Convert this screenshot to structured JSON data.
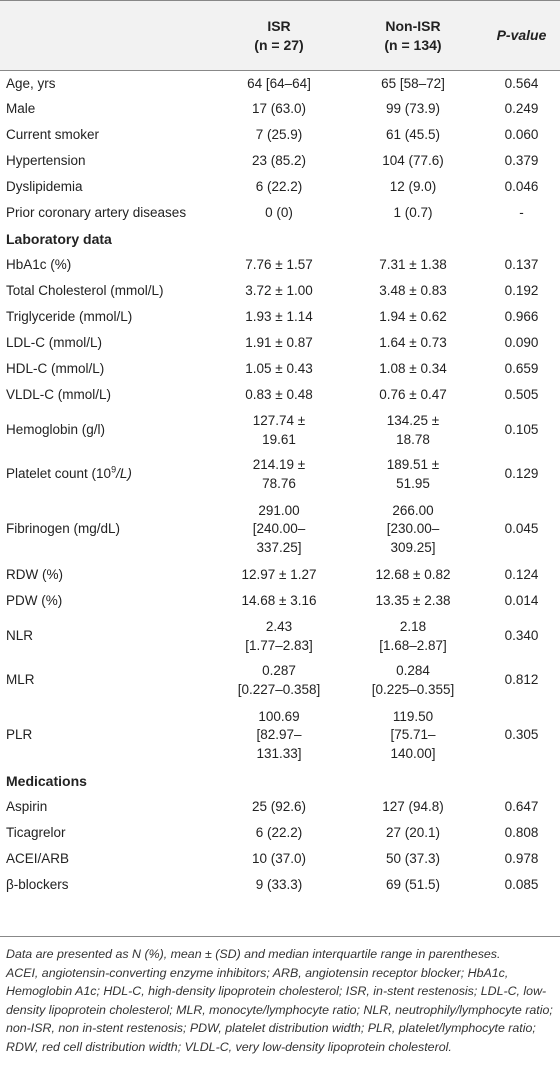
{
  "header": {
    "col_isr": "ISR",
    "col_isr_n": "(n = 27)",
    "col_nonisr": "Non-ISR",
    "col_nonisr_n": "(n = 134)",
    "col_pvalue": "P-value"
  },
  "rows": [
    {
      "label": "Age, yrs",
      "isr": "64 [64–64]",
      "non": "65 [58–72]",
      "p": "0.564"
    },
    {
      "label": "Male",
      "isr": "17 (63.0)",
      "non": "99 (73.9)",
      "p": "0.249"
    },
    {
      "label": "Current smoker",
      "isr": "7 (25.9)",
      "non": "61 (45.5)",
      "p": "0.060"
    },
    {
      "label": "Hypertension",
      "isr": "23 (85.2)",
      "non": "104 (77.6)",
      "p": "0.379"
    },
    {
      "label": "Dyslipidemia",
      "isr": "6 (22.2)",
      "non": "12 (9.0)",
      "p": "0.046"
    },
    {
      "label": "Prior coronary artery diseases",
      "isr": "0 (0)",
      "non": "1 (0.7)",
      "p": "-"
    }
  ],
  "section_lab": "Laboratory data",
  "lab_rows": [
    {
      "label": "HbA1c (%)",
      "isr": "7.76 ± 1.57",
      "non": "7.31 ± 1.38",
      "p": "0.137"
    },
    {
      "label": "Total Cholesterol (mmol/L)",
      "isr": "3.72 ± 1.00",
      "non": "3.48 ± 0.83",
      "p": "0.192"
    },
    {
      "label": "Triglyceride (mmol/L)",
      "isr": "1.93 ± 1.14",
      "non": "1.94 ± 0.62",
      "p": "0.966"
    },
    {
      "label": "LDL-C (mmol/L)",
      "isr": "1.91 ± 0.87",
      "non": "1.64 ± 0.73",
      "p": "0.090"
    },
    {
      "label": "HDL-C (mmol/L)",
      "isr": "1.05 ± 0.43",
      "non": "1.08 ± 0.34",
      "p": "0.659"
    },
    {
      "label": "VLDL-C (mmol/L)",
      "isr": "0.83 ± 0.48",
      "non": "0.76 ± 0.47",
      "p": "0.505"
    },
    {
      "label": "Hemoglobin (g/l)",
      "isr": [
        "127.74 ±",
        "19.61"
      ],
      "non": [
        "134.25 ±",
        "18.78"
      ],
      "p": "0.105"
    },
    {
      "label_pre": "Platelet count (10",
      "label_sup": "9",
      "label_post": "/L)",
      "isr": [
        "214.19 ±",
        "78.76"
      ],
      "non": [
        "189.51 ±",
        "51.95"
      ],
      "p": "0.129"
    },
    {
      "label": "Fibrinogen (mg/dL)",
      "isr": [
        "291.00",
        "[240.00–",
        "337.25]"
      ],
      "non": [
        "266.00",
        "[230.00–",
        "309.25]"
      ],
      "p": "0.045"
    },
    {
      "label": "RDW (%)",
      "isr": "12.97 ± 1.27",
      "non": "12.68 ± 0.82",
      "p": "0.124"
    },
    {
      "label": "PDW (%)",
      "isr": "14.68 ± 3.16",
      "non": "13.35 ± 2.38",
      "p": "0.014"
    },
    {
      "label": "NLR",
      "isr": [
        "2.43",
        "[1.77–2.83]"
      ],
      "non": [
        "2.18",
        "[1.68–2.87]"
      ],
      "p": "0.340"
    },
    {
      "label": "MLR",
      "isr": [
        "0.287",
        "[0.227–0.358]"
      ],
      "non": [
        "0.284",
        "[0.225–0.355]"
      ],
      "p": "0.812"
    },
    {
      "label": "PLR",
      "isr": [
        "100.69",
        "[82.97–",
        "131.33]"
      ],
      "non": [
        "119.50",
        "[75.71–",
        "140.00]"
      ],
      "p": "0.305"
    }
  ],
  "section_med": "Medications",
  "med_rows": [
    {
      "label": "Aspirin",
      "isr": "25 (92.6)",
      "non": "127 (94.8)",
      "p": "0.647"
    },
    {
      "label": "Ticagrelor",
      "isr": "6 (22.2)",
      "non": "27 (20.1)",
      "p": "0.808"
    },
    {
      "label": "ACEI/ARB",
      "isr": "10 (37.0)",
      "non": "50 (37.3)",
      "p": "0.978"
    },
    {
      "label": "β-blockers",
      "isr": "9 (33.3)",
      "non": "69 (51.5)",
      "p": "0.085"
    }
  ],
  "footnote_line1": "Data are presented as N (%), mean ± (SD) and median interquartile range in parentheses.",
  "footnote_line2": "ACEI, angiotensin-converting enzyme inhibitors; ARB, angiotensin receptor blocker; HbA1c, Hemoglobin A1c; HDL-C, high-density lipoprotein cholesterol; ISR, in-stent restenosis; LDL-C, low-density lipoprotein cholesterol; MLR, monocyte/lymphocyte ratio; NLR, neutrophily/lymphocyte ratio; non-ISR, non in-stent restenosis; PDW, platelet distribution width; PLR, platelet/lymphocyte ratio; RDW, red cell distribution width; VLDL-C, very low-density lipoprotein cholesterol."
}
